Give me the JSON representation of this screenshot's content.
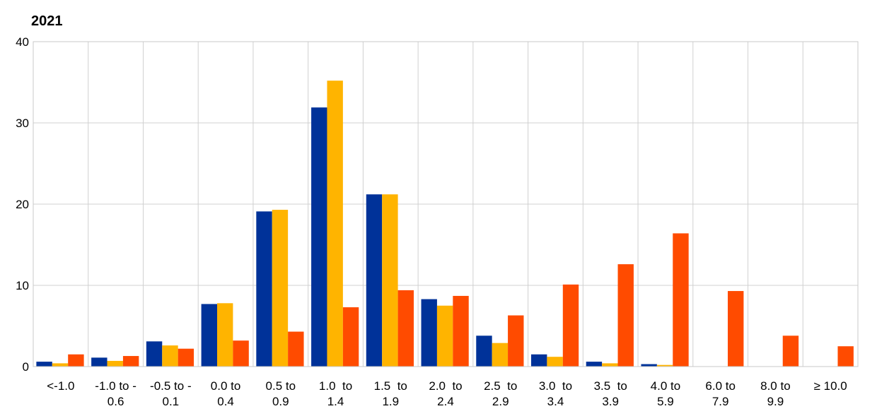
{
  "chart_data": {
    "type": "bar",
    "title": "2021",
    "xlabel": "",
    "ylabel": "",
    "ylim": [
      0,
      40
    ],
    "yticks": [
      "0",
      "10",
      "20",
      "30",
      "40"
    ],
    "grid": true,
    "categories": [
      [
        "<-1.0"
      ],
      [
        "-1.0 to -",
        "0.6"
      ],
      [
        "-0.5 to -",
        "0.1"
      ],
      [
        "0.0 to",
        "0.4"
      ],
      [
        "0.5 to",
        "0.9"
      ],
      [
        "1.0  to",
        "1.4"
      ],
      [
        "1.5  to",
        "1.9"
      ],
      [
        "2.0  to",
        "2.4"
      ],
      [
        "2.5  to",
        "2.9"
      ],
      [
        "3.0  to",
        "3.4"
      ],
      [
        "3.5  to",
        "3.9"
      ],
      [
        "4.0 to",
        "5.9"
      ],
      [
        "6.0 to",
        "7.9"
      ],
      [
        "8.0 to",
        "9.9"
      ],
      [
        "≥ 10.0"
      ]
    ],
    "series": [
      {
        "color": "#003299",
        "values": [
          0.6,
          1.1,
          3.1,
          7.7,
          19.1,
          31.9,
          21.2,
          8.3,
          3.8,
          1.5,
          0.6,
          0.3,
          0,
          0,
          0
        ]
      },
      {
        "color": "#FFB400",
        "values": [
          0.4,
          0.7,
          2.6,
          7.8,
          19.3,
          35.2,
          21.2,
          7.5,
          2.9,
          1.2,
          0.4,
          0.2,
          0,
          0,
          0
        ]
      },
      {
        "color": "#FF4B00",
        "values": [
          1.5,
          1.3,
          2.2,
          3.2,
          4.3,
          7.3,
          9.4,
          8.7,
          6.3,
          10.1,
          12.6,
          16.4,
          9.3,
          3.8,
          2.5
        ]
      }
    ]
  }
}
